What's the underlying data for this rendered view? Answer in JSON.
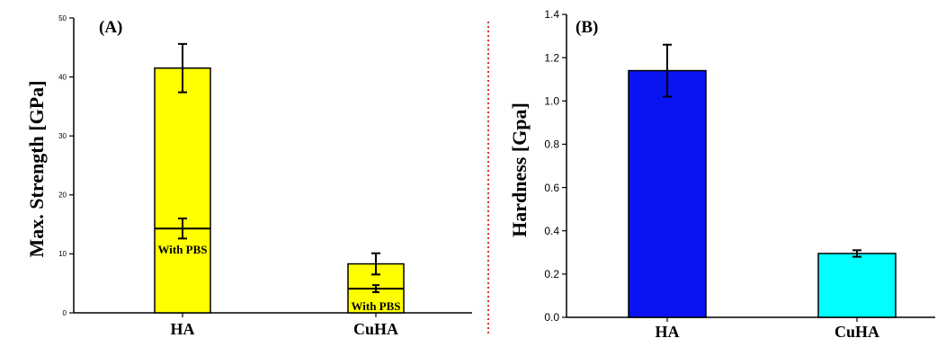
{
  "chart_data": [
    {
      "type": "bar",
      "panel_label": "(A)",
      "ylabel": "Max. Strength  [GPa]",
      "ylim": [
        0,
        50
      ],
      "yticks": [
        "0",
        "10",
        "20",
        "30",
        "40",
        "50"
      ],
      "categories": [
        "HA",
        "CuHA"
      ],
      "series": [
        {
          "values": [
            41.5,
            8.3
          ],
          "errors": [
            4.1,
            1.8
          ]
        },
        {
          "name": "With PBS",
          "values": [
            14.3,
            4.1
          ],
          "errors": [
            1.7,
            0.6
          ]
        }
      ],
      "inner_label": "With PBS",
      "colors": {
        "bar_fill": "#ffff00",
        "bar_stroke": "#000000"
      },
      "grid": false
    },
    {
      "type": "bar",
      "panel_label": "(B)",
      "ylabel": "Hardness [Gpa]",
      "ylim": [
        0,
        1.4
      ],
      "yticks": [
        "0.0",
        "0.2",
        "0.4",
        "0.6",
        "0.8",
        "1.0",
        "1.2",
        "1.4"
      ],
      "categories": [
        "HA",
        "CuHA"
      ],
      "series": [
        {
          "values": [
            1.14,
            0.295
          ],
          "errors": [
            0.12,
            0.015
          ]
        }
      ],
      "colors": {
        "bars": [
          "#0a14f0",
          "#00ffff"
        ],
        "bar_stroke": "#000000"
      },
      "grid": false
    }
  ],
  "divider_color": "#e03030"
}
